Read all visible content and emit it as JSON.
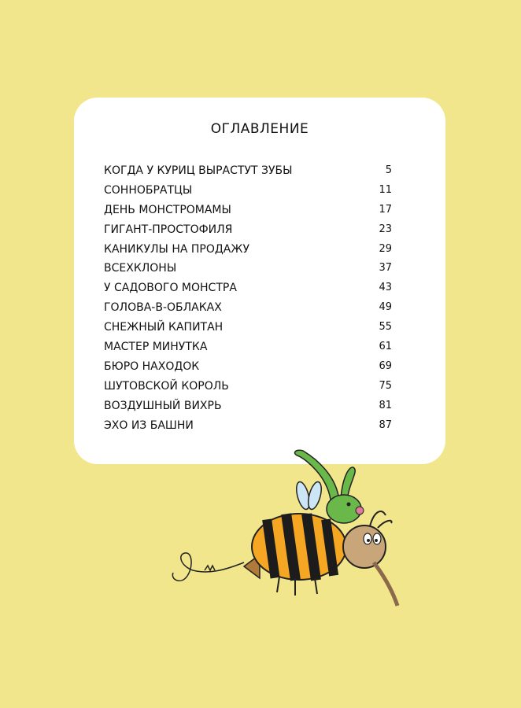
{
  "toc": {
    "title": "ОГЛАВЛЕНИЕ",
    "entries": [
      {
        "title": "КОГДА У КУРИЦ ВЫРАСТУТ ЗУБЫ",
        "page": "5"
      },
      {
        "title": "СОННОБРАТЦЫ",
        "page": "11"
      },
      {
        "title": "ДЕНЬ МОНСТРОМАМЫ",
        "page": "17"
      },
      {
        "title": "ГИГАНТ-ПРОСТОФИЛЯ",
        "page": "23"
      },
      {
        "title": "КАНИКУЛЫ НА ПРОДАЖУ",
        "page": "29"
      },
      {
        "title": "ВСЕХКЛОНЫ",
        "page": "37"
      },
      {
        "title": "У САДОВОГО МОНСТРА",
        "page": "43"
      },
      {
        "title": "ГОЛОВА-В-ОБЛАКАХ",
        "page": "49"
      },
      {
        "title": "СНЕЖНЫЙ КАПИТАН",
        "page": "55"
      },
      {
        "title": "МАСТЕР МИНУТКА",
        "page": "61"
      },
      {
        "title": "БЮРО НАХОДОК",
        "page": "69"
      },
      {
        "title": "ШУТОВСКОЙ КОРОЛЬ",
        "page": "75"
      },
      {
        "title": "ВОЗДУШНЫЙ ВИХРЬ",
        "page": "81"
      },
      {
        "title": "ЭХО ИЗ БАШНИ",
        "page": "87"
      }
    ]
  },
  "colors": {
    "background": "#f2e68c",
    "card": "#ffffff"
  },
  "illustration": "bee-with-green-monster-rider"
}
